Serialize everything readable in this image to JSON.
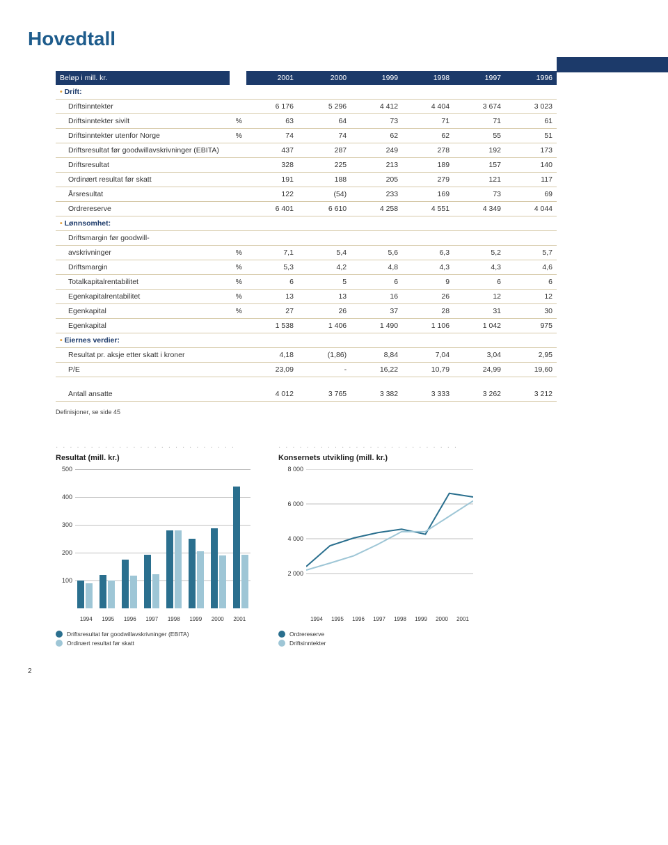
{
  "title": "Hovedtall",
  "header": {
    "label": "Beløp i mill. kr.",
    "years": [
      "2001",
      "2000",
      "1999",
      "1998",
      "1997",
      "1996"
    ]
  },
  "sections": {
    "drift": {
      "label": "Drift:",
      "rows": [
        {
          "label": "Driftsinntekter",
          "unit": "",
          "vals": [
            "6 176",
            "5 296",
            "4 412",
            "4 404",
            "3 674",
            "3 023"
          ]
        },
        {
          "label": "Driftsinntekter sivilt",
          "unit": "%",
          "vals": [
            "63",
            "64",
            "73",
            "71",
            "71",
            "61"
          ]
        },
        {
          "label": "Driftsinntekter utenfor Norge",
          "unit": "%",
          "vals": [
            "74",
            "74",
            "62",
            "62",
            "55",
            "51"
          ]
        },
        {
          "label": "Driftsresultat før goodwillavskrivninger (EBITA)",
          "unit": "",
          "vals": [
            "437",
            "287",
            "249",
            "278",
            "192",
            "173"
          ]
        },
        {
          "label": "Driftsresultat",
          "unit": "",
          "vals": [
            "328",
            "225",
            "213",
            "189",
            "157",
            "140"
          ]
        },
        {
          "label": "Ordinært resultat før skatt",
          "unit": "",
          "vals": [
            "191",
            "188",
            "205",
            "279",
            "121",
            "117"
          ]
        },
        {
          "label": "Årsresultat",
          "unit": "",
          "vals": [
            "122",
            "(54)",
            "233",
            "169",
            "73",
            "69"
          ]
        },
        {
          "label": "Ordrereserve",
          "unit": "",
          "vals": [
            "6 401",
            "6 610",
            "4 258",
            "4 551",
            "4 349",
            "4 044"
          ]
        }
      ]
    },
    "lonnsomhet": {
      "label": "Lønnsomhet:",
      "rows": [
        {
          "label": "Driftsmargin før goodwill-",
          "unit": "",
          "vals": [
            "",
            "",
            "",
            "",
            "",
            ""
          ]
        },
        {
          "label": "avskrivninger",
          "unit": "%",
          "vals": [
            "7,1",
            "5,4",
            "5,6",
            "6,3",
            "5,2",
            "5,7"
          ]
        },
        {
          "label": "Driftsmargin",
          "unit": "%",
          "vals": [
            "5,3",
            "4,2",
            "4,8",
            "4,3",
            "4,3",
            "4,6"
          ]
        },
        {
          "label": "Totalkapitalrentabilitet",
          "unit": "%",
          "vals": [
            "6",
            "5",
            "6",
            "9",
            "6",
            "6"
          ]
        },
        {
          "label": "Egenkapitalrentabilitet",
          "unit": "%",
          "vals": [
            "13",
            "13",
            "16",
            "26",
            "12",
            "12"
          ]
        },
        {
          "label": "Egenkapital",
          "unit": "%",
          "vals": [
            "27",
            "26",
            "37",
            "28",
            "31",
            "30"
          ]
        },
        {
          "label": "Egenkapital",
          "unit": "",
          "vals": [
            "1 538",
            "1 406",
            "1 490",
            "1 106",
            "1 042",
            "975"
          ]
        }
      ]
    },
    "eiernes": {
      "label": "Eiernes verdier:",
      "rows": [
        {
          "label": "Resultat pr. aksje etter skatt i kroner",
          "unit": "",
          "vals": [
            "4,18",
            "(1,86)",
            "8,84",
            "7,04",
            "3,04",
            "2,95"
          ]
        },
        {
          "label": "P/E",
          "unit": "",
          "vals": [
            "23,09",
            "-",
            "16,22",
            "10,79",
            "24,99",
            "19,60"
          ]
        }
      ]
    },
    "bottom": {
      "rows": [
        {
          "label": "Antall ansatte",
          "unit": "",
          "vals": [
            "4 012",
            "3 765",
            "3 382",
            "3 333",
            "3 262",
            "3 212"
          ]
        }
      ]
    }
  },
  "footnote": "Definisjoner, se side 45",
  "chart_bar": {
    "title": "Resultat (mill. kr.)",
    "ymax": 500,
    "ystep": 100,
    "xlabels": [
      "1994",
      "1995",
      "1996",
      "1997",
      "1998",
      "1999",
      "2000",
      "2001"
    ],
    "series_a": {
      "color": "#2a6f8e",
      "values": [
        100,
        120,
        173,
        192,
        278,
        249,
        287,
        437
      ]
    },
    "series_b": {
      "color": "#9ec6d6",
      "values": [
        90,
        100,
        117,
        121,
        279,
        205,
        188,
        191
      ]
    },
    "legend_a": "Driftsresultat før goodwillavskrivninger (EBITA)",
    "legend_b": "Ordinært resultat før skatt",
    "grid_color": "#bfbfbf"
  },
  "chart_line": {
    "title": "Konsernets utvikling (mill. kr.)",
    "ymax": 8000,
    "ystep": 2000,
    "xlabels": [
      "1994",
      "1995",
      "1996",
      "1997",
      "1998",
      "1999",
      "2000",
      "2001"
    ],
    "series_a": {
      "color": "#2a6f8e",
      "values": [
        2400,
        3600,
        4044,
        4349,
        4551,
        4258,
        6610,
        6401
      ]
    },
    "series_b": {
      "color": "#9ec6d6",
      "values": [
        2200,
        2600,
        3023,
        3674,
        4404,
        4412,
        5296,
        6176
      ]
    },
    "legend_a": "Ordrereserve",
    "legend_b": "Driftsinntekter",
    "grid_color": "#bfbfbf"
  },
  "page_number": "2"
}
